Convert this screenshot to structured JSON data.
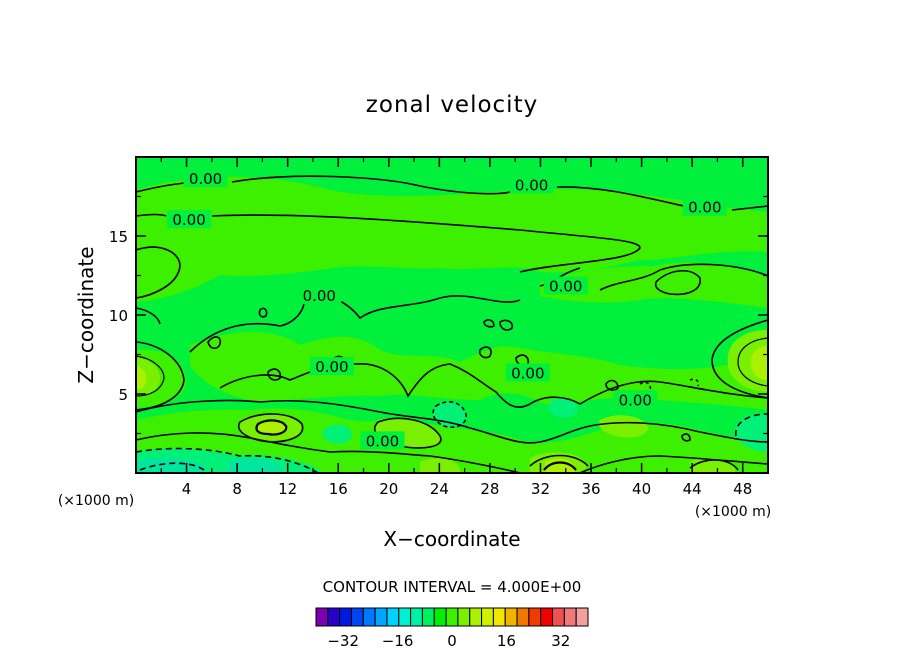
{
  "chart_data": {
    "type": "heatmap",
    "title": "zonal velocity",
    "xlabel": "X−coordinate",
    "ylabel": "Z−coordinate",
    "x_unit_left": "(×1000 m)",
    "x_unit_right": "(×1000 m)",
    "xlim": [
      0,
      50
    ],
    "ylim": [
      0,
      20
    ],
    "x_ticks": [
      "4",
      "8",
      "12",
      "16",
      "20",
      "24",
      "28",
      "32",
      "36",
      "40",
      "44",
      "48"
    ],
    "x_tick_values": [
      4,
      8,
      12,
      16,
      20,
      24,
      28,
      32,
      36,
      40,
      44,
      48
    ],
    "y_ticks": [
      "5",
      "10",
      "15"
    ],
    "y_tick_values": [
      5,
      10,
      15
    ],
    "contour_labels": [
      {
        "text": "0.00",
        "x": 5.5,
        "z": 18.6
      },
      {
        "text": "0.00",
        "x": 4.2,
        "z": 16.0
      },
      {
        "text": "0.00",
        "x": 31.3,
        "z": 18.2
      },
      {
        "text": "0.00",
        "x": 45.0,
        "z": 16.8
      },
      {
        "text": "0.00",
        "x": 14.5,
        "z": 11.2
      },
      {
        "text": "0.00",
        "x": 34.0,
        "z": 11.8
      },
      {
        "text": "0.00",
        "x": 15.5,
        "z": 6.7
      },
      {
        "text": "0.00",
        "x": 31.0,
        "z": 6.3
      },
      {
        "text": "0.00",
        "x": 39.5,
        "z": 4.6
      },
      {
        "text": "0.00",
        "x": 19.5,
        "z": 2.0
      }
    ],
    "contour_interval_text": "CONTOUR INTERVAL = 4.000E+00",
    "contour_interval": 4.0,
    "colorbar": {
      "colors": [
        "#7a00b4",
        "#2800c8",
        "#0019e0",
        "#0046f0",
        "#0078ff",
        "#00a5ff",
        "#00d2ff",
        "#00f0d2",
        "#00f0a5",
        "#00f064",
        "#00f000",
        "#3cf000",
        "#78f000",
        "#aaf000",
        "#d2f000",
        "#f0e600",
        "#f0b400",
        "#f07800",
        "#f03c00",
        "#f00000",
        "#f05050",
        "#f07878",
        "#f5a0a0"
      ],
      "tick_labels": [
        "−32",
        "−16",
        "0",
        "16",
        "32"
      ],
      "tick_values": [
        -32,
        -16,
        0,
        16,
        32
      ],
      "range": [
        -40,
        40
      ]
    },
    "field_colors": {
      "background": "#00f03c",
      "weak_positive": "#3cf000",
      "moderate_positive": "#78f000",
      "strong_positive": "#aaf000",
      "weak_negative": "#00f078",
      "moderate_negative": "#00e6a0"
    },
    "grid": false
  }
}
